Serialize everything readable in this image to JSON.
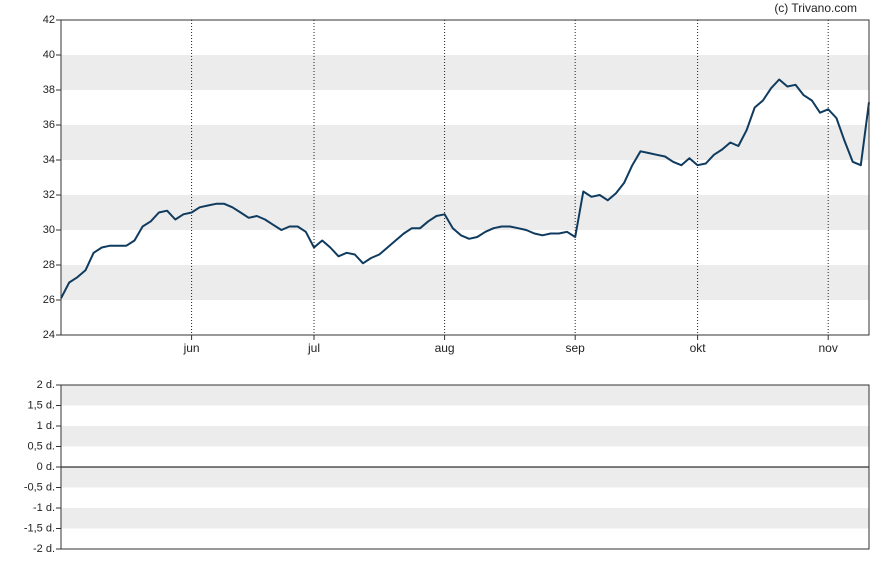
{
  "credit": "(c) Trivano.com",
  "chart_data": [
    {
      "type": "line",
      "categories": [
        null,
        null,
        null,
        null,
        null,
        null,
        null,
        null,
        null,
        null,
        null,
        null,
        null,
        null,
        null,
        null,
        "jun",
        null,
        null,
        null,
        null,
        null,
        null,
        null,
        null,
        null,
        null,
        null,
        null,
        null,
        null,
        "jul",
        null,
        null,
        null,
        null,
        null,
        null,
        null,
        null,
        null,
        null,
        null,
        null,
        null,
        null,
        null,
        "aug",
        null,
        null,
        null,
        null,
        null,
        null,
        null,
        null,
        null,
        null,
        null,
        null,
        null,
        null,
        null,
        "sep",
        null,
        null,
        null,
        null,
        null,
        null,
        null,
        null,
        null,
        null,
        null,
        null,
        null,
        null,
        "okt",
        null,
        null,
        null,
        null,
        null,
        null,
        null,
        null,
        null,
        null,
        null,
        null,
        null,
        null,
        null,
        "nov",
        null,
        null,
        null,
        null,
        null
      ],
      "series": [
        {
          "color": "#0f3b5f",
          "values": [
            26.1,
            27.0,
            27.3,
            27.7,
            28.7,
            29.0,
            29.1,
            29.1,
            29.1,
            29.4,
            30.2,
            30.5,
            31.0,
            31.1,
            30.6,
            30.9,
            31.0,
            31.3,
            31.4,
            31.5,
            31.5,
            31.3,
            31.0,
            30.7,
            30.8,
            30.6,
            30.3,
            30.0,
            30.2,
            30.2,
            29.9,
            29.0,
            29.4,
            29.0,
            28.5,
            28.7,
            28.6,
            28.1,
            28.4,
            28.6,
            29.0,
            29.4,
            29.8,
            30.1,
            30.1,
            30.5,
            30.8,
            30.9,
            30.1,
            29.7,
            29.5,
            29.6,
            29.9,
            30.1,
            30.2,
            30.2,
            30.1,
            30.0,
            29.8,
            29.7,
            29.8,
            29.8,
            29.9,
            29.6,
            32.2,
            31.9,
            32.0,
            31.7,
            32.1,
            32.7,
            33.7,
            34.5,
            34.4,
            34.3,
            34.2,
            33.9,
            33.7,
            34.1,
            33.7,
            33.8,
            34.3,
            34.6,
            35.0,
            34.8,
            35.7,
            37.0,
            37.4,
            38.1,
            38.6,
            38.2,
            38.3,
            37.7,
            37.4,
            36.7,
            36.9,
            36.4,
            35.1,
            33.9,
            33.7,
            37.3
          ]
        }
      ],
      "ylim": [
        24,
        42
      ],
      "yticks": [
        24,
        26,
        28,
        30,
        32,
        34,
        36,
        38,
        40,
        42
      ],
      "grid": true
    },
    {
      "type": "line",
      "series": [],
      "ylim": [
        -2,
        2
      ],
      "zero_line": true,
      "yticks": [
        {
          "value": -2,
          "label": "-2 d."
        },
        {
          "value": -1.5,
          "label": "-1,5 d."
        },
        {
          "value": -1,
          "label": "-1 d."
        },
        {
          "value": -0.5,
          "label": "-0,5 d."
        },
        {
          "value": 0,
          "label": "0 d."
        },
        {
          "value": 0.5,
          "label": "0,5 d."
        },
        {
          "value": 1,
          "label": "1 d."
        },
        {
          "value": 1.5,
          "label": "1,5 d."
        },
        {
          "value": 2,
          "label": "2 d."
        }
      ]
    }
  ]
}
